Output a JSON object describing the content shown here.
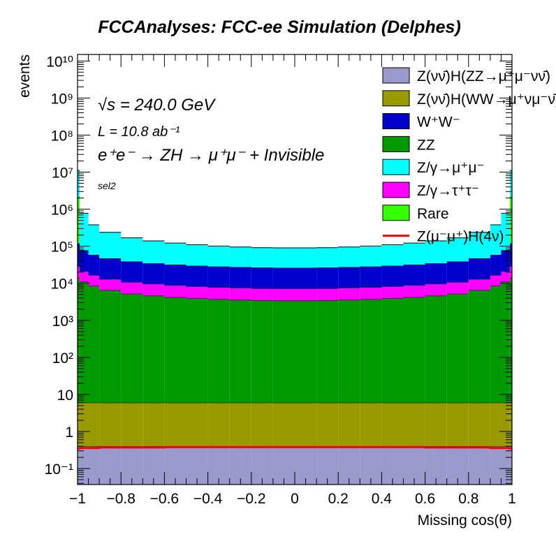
{
  "chart_data": {
    "type": "bar",
    "subtype": "stacked-histogram",
    "title": "FCCAnalyses: FCC-ee Simulation (Delphes)",
    "xlabel": "Missing cos(θ)",
    "ylabel": "events",
    "xlim": [
      -1,
      1
    ],
    "ylim": [
      0.037,
      15000000000.0
    ],
    "yscale": "log",
    "grid": false,
    "legend_placement": "top-right",
    "annotations": {
      "energy": "√s = 240.0 GeV",
      "lumi": "L = 10.8 ab⁻¹",
      "process": "e⁺e⁻ → ZH → μ⁺μ⁻ + Invisible",
      "selection": "sel2"
    },
    "x_tick_labels": [
      "−1",
      "−0.8",
      "−0.6",
      "−0.4",
      "−0.2",
      "0",
      "0.2",
      "0.4",
      "0.6",
      "0.8",
      "1"
    ],
    "x_ticks": [
      -1,
      -0.8,
      -0.6,
      -0.4,
      -0.2,
      0,
      0.2,
      0.4,
      0.6,
      0.8,
      1
    ],
    "y_tick_labels": [
      "10⁻¹",
      "1",
      "10",
      "10²",
      "10³",
      "10⁴",
      "10⁵",
      "10⁶",
      "10⁷",
      "10⁸",
      "10⁹",
      "10¹⁰"
    ],
    "y_ticks": [
      0.1,
      1,
      10,
      100,
      1000,
      10000,
      100000,
      1000000,
      10000000,
      100000000,
      1000000000,
      10000000000
    ],
    "bin_edges": [
      -1,
      -0.99,
      -0.95,
      -0.9,
      -0.8,
      -0.7,
      -0.6,
      -0.5,
      -0.4,
      -0.3,
      -0.2,
      -0.1,
      0,
      0.1,
      0.2,
      0.3,
      0.4,
      0.5,
      0.6,
      0.7,
      0.8,
      0.9,
      0.95,
      0.99,
      1
    ],
    "series": [
      {
        "name": "Z(νν̄)H(ZZ→μ⁺μ⁻νν̄)",
        "color": "#9999cc",
        "style": "fill",
        "values": [
          0.4,
          0.4,
          0.4,
          0.4,
          0.4,
          0.4,
          0.4,
          0.4,
          0.4,
          0.4,
          0.4,
          0.4,
          0.4,
          0.4,
          0.4,
          0.4,
          0.4,
          0.4,
          0.4,
          0.4,
          0.4,
          0.4,
          0.4,
          0.4
        ]
      },
      {
        "name": "Z(νν̄)H(WW→μ⁺νμ⁻ν̄)",
        "color": "#999900",
        "style": "fill",
        "values": [
          5.6,
          5.6,
          5.6,
          5.6,
          5.6,
          5.6,
          5.6,
          5.6,
          5.6,
          5.6,
          5.6,
          5.6,
          5.6,
          5.6,
          5.6,
          5.6,
          5.6,
          5.6,
          5.6,
          5.6,
          5.6,
          5.6,
          5.6,
          5.6
        ]
      },
      {
        "name": "ZZ",
        "color": "#009900",
        "style": "fill",
        "values": [
          14000,
          11000,
          8500,
          6500,
          5200,
          4600,
          4200,
          3900,
          3700,
          3550,
          3450,
          3400,
          3400,
          3450,
          3550,
          3700,
          3900,
          4200,
          4600,
          5200,
          6500,
          8500,
          11000,
          14000
        ]
      },
      {
        "name": "Z/γ→τ⁺τ⁻",
        "color": "#ff00ff",
        "style": "fill",
        "values": [
          15000,
          10000,
          8000,
          6500,
          5500,
          5000,
          4600,
          4300,
          4100,
          3950,
          3850,
          3800,
          3800,
          3850,
          3950,
          4100,
          4300,
          4600,
          5000,
          5500,
          6500,
          8000,
          10000,
          15000
        ]
      },
      {
        "name": "W⁺W⁻",
        "color": "#0000cc",
        "style": "fill",
        "values": [
          90000,
          55000,
          42000,
          34000,
          28000,
          25000,
          23000,
          21500,
          20500,
          19800,
          19300,
          19000,
          19000,
          19300,
          19800,
          20500,
          21500,
          23000,
          25000,
          28000,
          34000,
          42000,
          55000,
          90000
        ]
      },
      {
        "name": "Rare",
        "color": "#33ff00",
        "style": "fill",
        "values": [
          2000000,
          2000,
          100,
          20,
          20,
          20,
          20,
          20,
          20,
          20,
          20,
          20,
          20,
          20,
          20,
          20,
          20,
          20,
          20,
          20,
          20,
          100,
          2000,
          2000000
        ]
      },
      {
        "name": "Z/γ→μ⁺μ⁻",
        "color": "#00ffff",
        "style": "fill",
        "values": [
          9000000,
          700000,
          320000,
          190000,
          130000,
          105000,
          90000,
          80000,
          73000,
          68000,
          65000,
          64000,
          64000,
          65000,
          68000,
          73000,
          80000,
          90000,
          105000,
          130000,
          190000,
          320000,
          700000,
          9000000
        ]
      },
      {
        "name": "Z(μ⁻μ⁺)H(4ν)",
        "color": "#ff0000",
        "style": "line",
        "values": [
          0.35,
          0.36,
          0.36,
          0.37,
          0.37,
          0.37,
          0.38,
          0.38,
          0.38,
          0.38,
          0.38,
          0.38,
          0.38,
          0.38,
          0.38,
          0.38,
          0.38,
          0.38,
          0.37,
          0.37,
          0.37,
          0.36,
          0.36,
          0.35
        ]
      }
    ],
    "legend_order": [
      0,
      1,
      4,
      2,
      6,
      3,
      5,
      7
    ]
  }
}
